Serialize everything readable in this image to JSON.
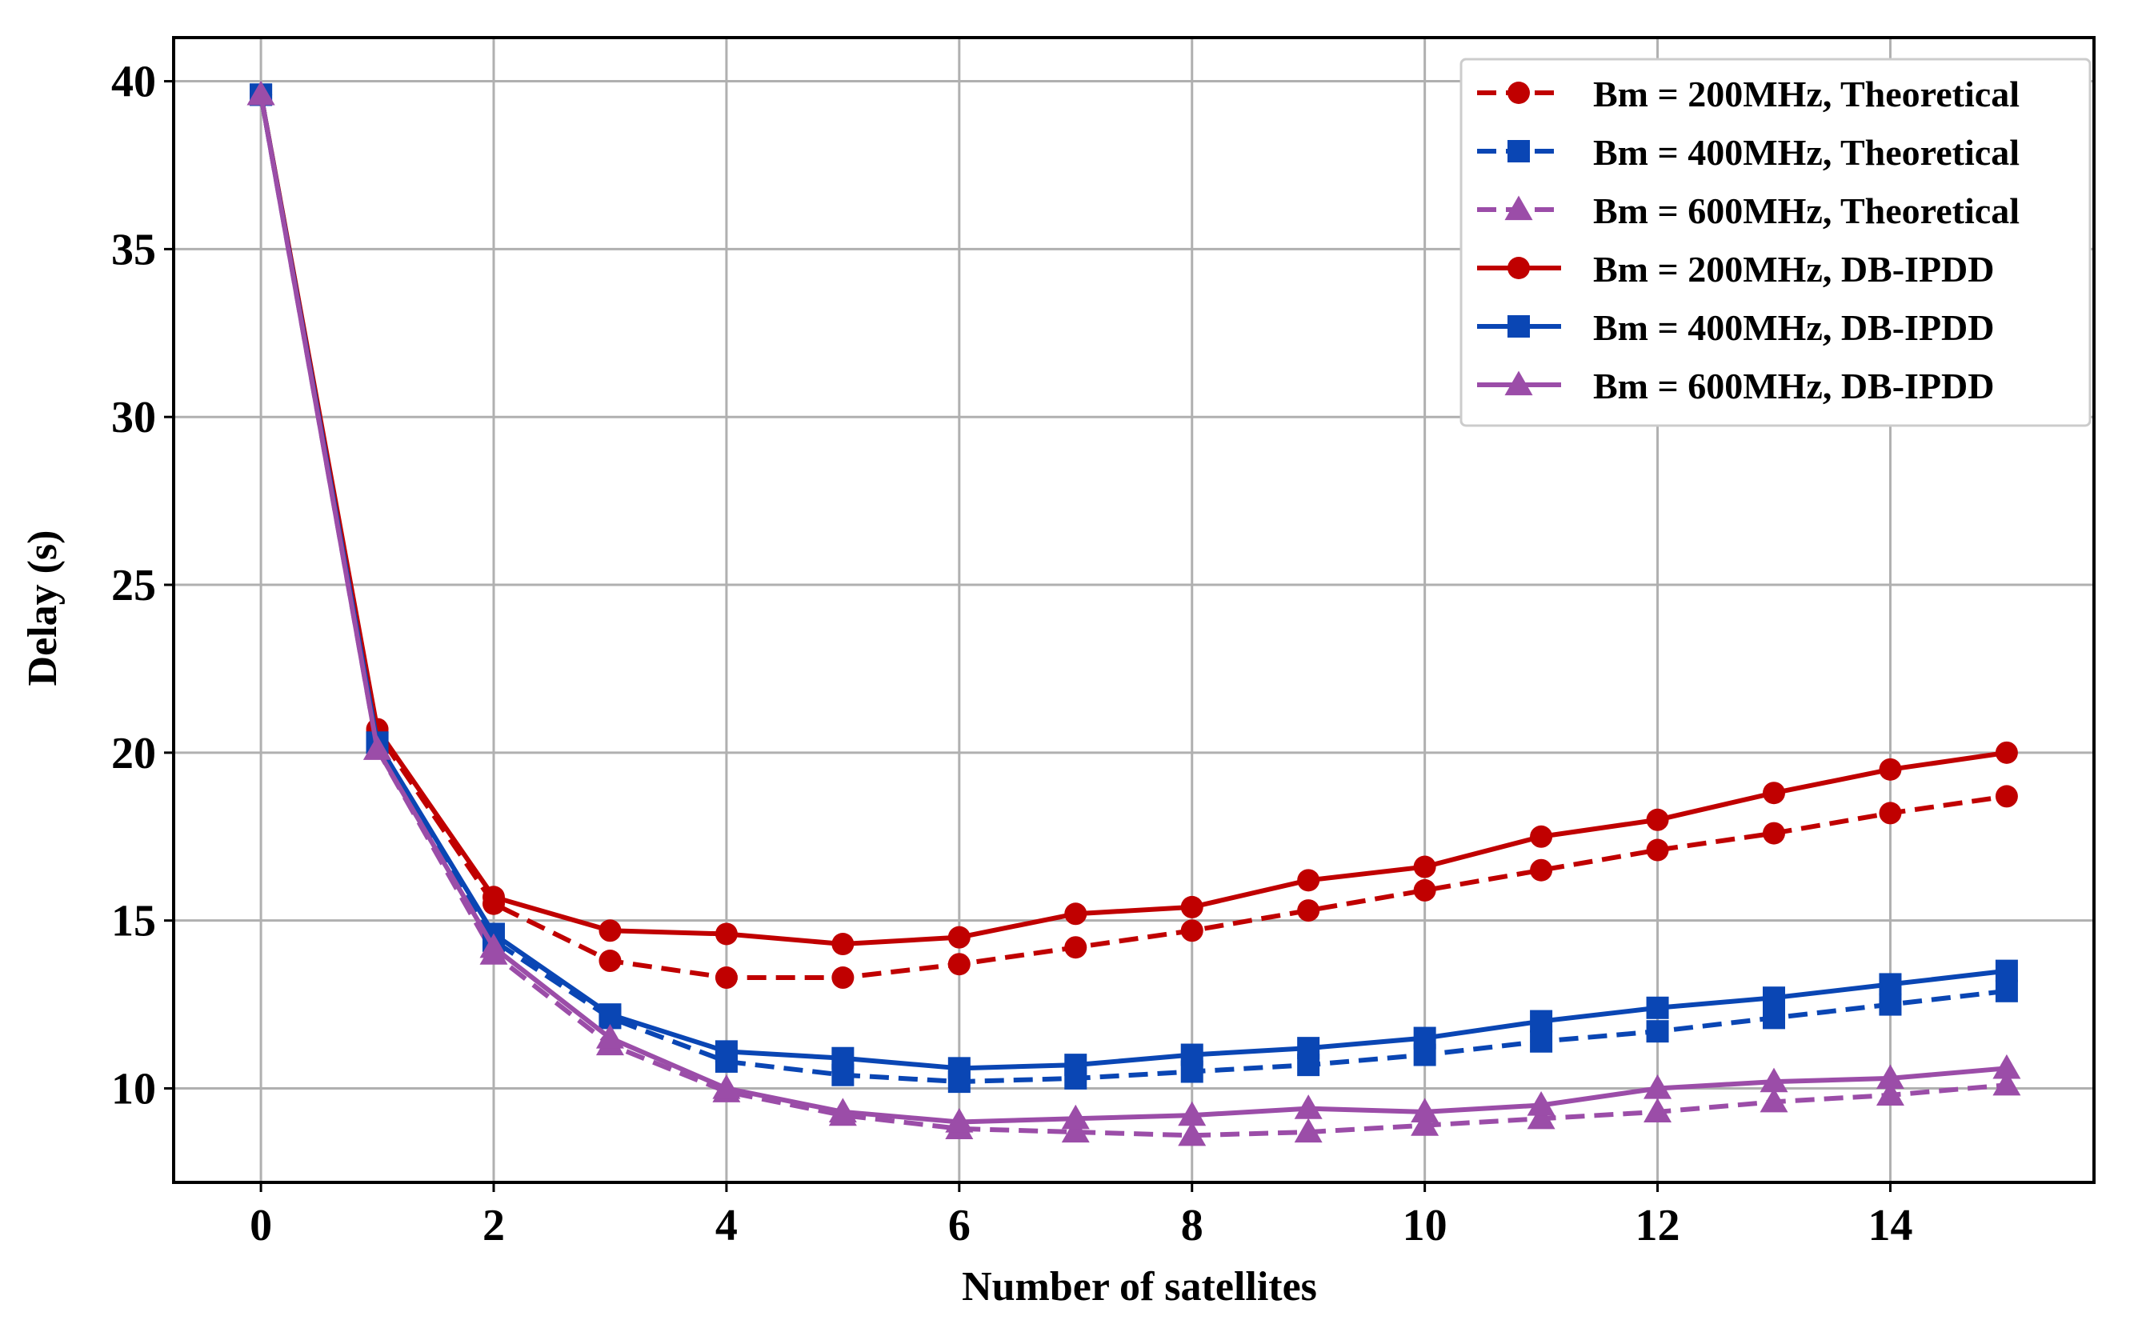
{
  "chart_data": {
    "type": "line",
    "title": "",
    "xlabel": "Number of satellites",
    "ylabel": "Delay (s)",
    "xlim": [
      -0.75,
      15.75
    ],
    "ylim": [
      7.2,
      41.3
    ],
    "xticks": [
      0,
      2,
      4,
      6,
      8,
      10,
      12,
      14
    ],
    "yticks": [
      10,
      15,
      20,
      25,
      30,
      35,
      40
    ],
    "grid": true,
    "legend_position": "top-right",
    "x": [
      0,
      1,
      2,
      3,
      4,
      5,
      6,
      7,
      8,
      9,
      10,
      11,
      12,
      13,
      14,
      15
    ],
    "series": [
      {
        "name": "Bm = 200MHz, Theoretical",
        "color": "#c00000",
        "dash": "dashed",
        "marker": "circle",
        "values": [
          39.6,
          20.6,
          15.5,
          13.8,
          13.3,
          13.3,
          13.7,
          14.2,
          14.7,
          15.3,
          15.9,
          16.5,
          17.1,
          17.6,
          18.2,
          18.7
        ]
      },
      {
        "name": "Bm = 400MHz, Theoretical",
        "color": "#0a46b4",
        "dash": "dashed",
        "marker": "square",
        "values": [
          39.6,
          20.3,
          14.4,
          12.1,
          10.8,
          10.4,
          10.2,
          10.3,
          10.5,
          10.7,
          11.0,
          11.4,
          11.7,
          12.1,
          12.5,
          12.9
        ]
      },
      {
        "name": "Bm = 600MHz, Theoretical",
        "color": "#9b4da8",
        "dash": "dashed",
        "marker": "triangle",
        "values": [
          39.6,
          20.1,
          14.0,
          11.3,
          9.9,
          9.2,
          8.8,
          8.7,
          8.6,
          8.7,
          8.9,
          9.1,
          9.3,
          9.6,
          9.8,
          10.1
        ]
      },
      {
        "name": "Bm = 200MHz, DB-IPDD",
        "color": "#c00000",
        "dash": "solid",
        "marker": "circle",
        "values": [
          39.6,
          20.7,
          15.7,
          14.7,
          14.6,
          14.3,
          14.5,
          15.2,
          15.4,
          16.2,
          16.6,
          17.5,
          18.0,
          18.8,
          19.5,
          20.0
        ]
      },
      {
        "name": "Bm = 400MHz, DB-IPDD",
        "color": "#0a46b4",
        "dash": "solid",
        "marker": "square",
        "values": [
          39.6,
          20.3,
          14.6,
          12.2,
          11.1,
          10.9,
          10.6,
          10.7,
          11.0,
          11.2,
          11.5,
          12.0,
          12.4,
          12.7,
          13.1,
          13.5
        ]
      },
      {
        "name": "Bm = 600MHz, DB-IPDD",
        "color": "#9b4da8",
        "dash": "solid",
        "marker": "triangle",
        "values": [
          39.6,
          20.1,
          14.2,
          11.5,
          10.0,
          9.3,
          9.0,
          9.1,
          9.2,
          9.4,
          9.3,
          9.5,
          10.0,
          10.2,
          10.3,
          10.6
        ]
      }
    ]
  }
}
